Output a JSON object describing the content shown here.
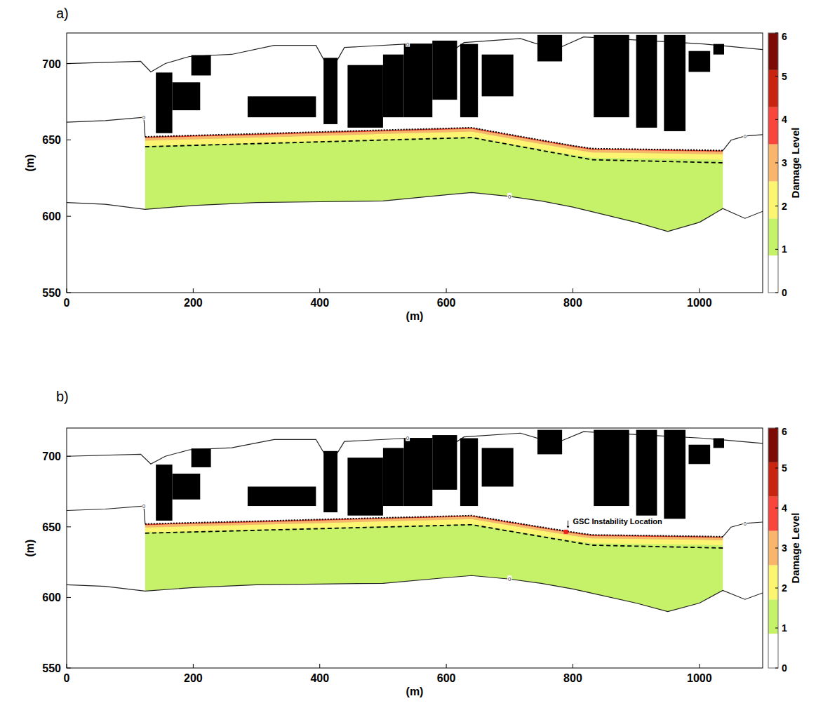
{
  "chart_data": [
    {
      "type": "section",
      "title": "a)",
      "x_label": "(m)",
      "y_label": "(m)",
      "xlim": [
        0,
        1100
      ],
      "xticks": [
        0,
        200,
        400,
        600,
        800,
        1000
      ],
      "ylim": [
        550,
        720
      ],
      "yticks": [
        550,
        600,
        650,
        700
      ],
      "colorbar": {
        "label": "Damage Level",
        "range": [
          0,
          6
        ],
        "ticks": [
          0,
          1,
          2,
          3,
          4,
          5,
          6
        ],
        "colors": [
          "#ffffff",
          "#c6f26a",
          "#fbf572",
          "#f8b56c",
          "#f9463c",
          "#c9240f",
          "#7c0b06"
        ]
      },
      "contours": [
        {
          "label": "0",
          "x": [
            0,
            117,
            133,
            156,
            194,
            261,
            328,
            394,
            417,
            439,
            539,
            583,
            594,
            628,
            717,
            772,
            817,
            917,
            1006,
            1100
          ],
          "values": [
            700,
            701.4,
            694.5,
            700,
            704.6,
            706,
            711.9,
            711.9,
            694.5,
            710.5,
            712.8,
            712.8,
            703.7,
            713.7,
            716.4,
            709.1,
            717.4,
            715,
            712.8,
            709.1
          ]
        },
        {
          "label": "0",
          "x": [
            0,
            61,
            122,
            124
          ],
          "values": [
            661.6,
            662.6,
            664.8,
            652
          ]
        },
        {
          "label": "0",
          "x": [
            1037,
            1050,
            1072,
            1100
          ],
          "values": [
            643,
            649.8,
            652.5,
            653.4
          ]
        },
        {
          "label": "0",
          "x": [
            0,
            61,
            124,
            200,
            300,
            400,
            500,
            600,
            640,
            700,
            750,
            800,
            830,
            900,
            950,
            1000,
            1037,
            1072,
            1100
          ],
          "values": [
            609,
            607.8,
            604.5,
            607,
            609,
            609.5,
            610,
            614,
            615.5,
            613,
            610,
            606,
            603,
            596,
            590,
            596,
            605,
            598.6,
            603.2
          ]
        }
      ],
      "zone": {
        "level": 1,
        "x": [
          124,
          200,
          300,
          400,
          500,
          600,
          640,
          700,
          750,
          800,
          830,
          900,
          950,
          1000,
          1037
        ],
        "top": [
          652,
          652.9,
          654,
          655.2,
          656.4,
          657.5,
          658,
          653.5,
          649.8,
          646.2,
          644.3,
          643.9,
          643.6,
          643.3,
          643
        ],
        "bottom": [
          604.5,
          607,
          609,
          609.5,
          610,
          614,
          615.5,
          613,
          610,
          606,
          603,
          596,
          590,
          596,
          605
        ]
      },
      "bands": [
        {
          "level": 2,
          "depth": [
            2.5,
            6
          ]
        },
        {
          "level": 3,
          "depth": [
            0.8,
            2.5
          ]
        },
        {
          "level": 4,
          "depth": [
            0,
            0.8
          ]
        }
      ],
      "dashed_line": {
        "x": [
          124,
          640,
          830,
          1037
        ],
        "values": [
          645.5,
          651.5,
          637,
          635
        ]
      },
      "buildings": [
        [
          141,
          167,
          654.4,
          694.1
        ],
        [
          167,
          211,
          669.4,
          687.7
        ],
        [
          197,
          228,
          692.2,
          705.5
        ],
        [
          286,
          394,
          664.8,
          678.5
        ],
        [
          406,
          428,
          660.3,
          703.7
        ],
        [
          444,
          500,
          658,
          699
        ],
        [
          500,
          533,
          664.8,
          705.9
        ],
        [
          533,
          578,
          664.8,
          712.8
        ],
        [
          578,
          617,
          676.3,
          715
        ],
        [
          622,
          650,
          664.8,
          712.8
        ],
        [
          656,
          706,
          678.5,
          705.9
        ],
        [
          744,
          783,
          701.4,
          718.7
        ],
        [
          833,
          889,
          664.8,
          718.7
        ],
        [
          900,
          933,
          658,
          718.7
        ],
        [
          944,
          978,
          655.7,
          718.7
        ],
        [
          983,
          1017,
          694.5,
          708.2
        ],
        [
          1022,
          1039,
          705.9,
          712.8
        ]
      ]
    },
    {
      "type": "section",
      "title": "b)",
      "x_label": "(m)",
      "y_label": "(m)",
      "xlim": [
        0,
        1100
      ],
      "xticks": [
        0,
        200,
        400,
        600,
        800,
        1000
      ],
      "ylim": [
        550,
        720
      ],
      "yticks": [
        550,
        600,
        650,
        700
      ],
      "colorbar": {
        "label": "Damage Level",
        "range": [
          0,
          6
        ],
        "ticks": [
          0,
          1,
          2,
          3,
          4,
          5,
          6
        ],
        "colors": [
          "#ffffff",
          "#c6f26a",
          "#fbf572",
          "#f8b56c",
          "#f9463c",
          "#c9240f",
          "#7c0b06"
        ]
      },
      "contours": [
        {
          "label": "0",
          "x": [
            0,
            117,
            133,
            156,
            194,
            261,
            328,
            394,
            417,
            439,
            539,
            583,
            594,
            628,
            717,
            772,
            817,
            917,
            1006,
            1100
          ],
          "values": [
            700,
            701.4,
            694.5,
            700,
            704.6,
            706,
            711.9,
            711.9,
            694.5,
            710.5,
            712.8,
            712.8,
            703.7,
            713.7,
            716.4,
            709.1,
            717.4,
            715,
            712.8,
            709.1
          ]
        },
        {
          "label": "0",
          "x": [
            0,
            61,
            122,
            124
          ],
          "values": [
            661.6,
            662.6,
            664.8,
            652
          ]
        },
        {
          "label": "0",
          "x": [
            1037,
            1050,
            1072,
            1100
          ],
          "values": [
            643,
            649.8,
            652.5,
            653.4
          ]
        },
        {
          "label": "0",
          "x": [
            0,
            61,
            124,
            200,
            300,
            400,
            500,
            600,
            640,
            700,
            750,
            800,
            830,
            900,
            950,
            1000,
            1037,
            1072,
            1100
          ],
          "values": [
            609,
            607.8,
            604.5,
            607,
            609,
            609.5,
            610,
            614,
            615.5,
            613,
            610,
            606,
            603,
            596,
            590,
            596,
            605,
            598.6,
            603.2
          ]
        }
      ],
      "zone": {
        "level": 1,
        "x": [
          124,
          200,
          300,
          400,
          500,
          600,
          640,
          700,
          750,
          800,
          830,
          900,
          950,
          1000,
          1037
        ],
        "top": [
          652,
          652.9,
          654,
          655.2,
          656.4,
          657.5,
          658,
          653.5,
          649.8,
          646.2,
          644.3,
          643.9,
          643.6,
          643.3,
          643
        ],
        "bottom": [
          604.5,
          607,
          609,
          609.5,
          610,
          614,
          615.5,
          613,
          610,
          606,
          603,
          596,
          590,
          596,
          605
        ]
      },
      "bands": [
        {
          "level": 2,
          "depth": [
            2.5,
            6
          ]
        },
        {
          "level": 3,
          "depth": [
            0.8,
            2.5
          ]
        },
        {
          "level": 4,
          "depth": [
            0,
            0.8
          ]
        }
      ],
      "dashed_line": {
        "x": [
          124,
          640,
          830,
          1037
        ],
        "values": [
          645.5,
          651.5,
          637,
          635
        ]
      },
      "buildings": [
        [
          141,
          167,
          654.4,
          694.1
        ],
        [
          167,
          211,
          669.4,
          687.7
        ],
        [
          197,
          228,
          692.2,
          705.5
        ],
        [
          286,
          394,
          664.8,
          678.5
        ],
        [
          406,
          428,
          660.3,
          703.7
        ],
        [
          444,
          500,
          658,
          699
        ],
        [
          500,
          533,
          664.8,
          705.9
        ],
        [
          533,
          578,
          664.8,
          712.8
        ],
        [
          578,
          617,
          676.3,
          715
        ],
        [
          622,
          650,
          664.8,
          712.8
        ],
        [
          656,
          706,
          678.5,
          705.9
        ],
        [
          744,
          783,
          701.4,
          718.7
        ],
        [
          833,
          889,
          664.8,
          718.7
        ],
        [
          900,
          933,
          658,
          718.7
        ],
        [
          944,
          978,
          655.7,
          718.7
        ],
        [
          983,
          1017,
          694.5,
          708.2
        ],
        [
          1022,
          1039,
          705.9,
          712.8
        ]
      ],
      "annotation": {
        "text": "GSC Instability Location",
        "x": 789,
        "y": 646.5
      }
    }
  ]
}
